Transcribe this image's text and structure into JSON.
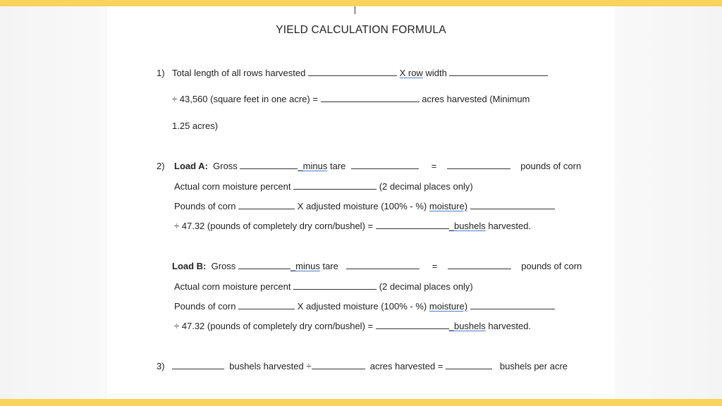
{
  "title": "YIELD CALCULATION FORMULA",
  "item1": {
    "num": "1)",
    "l1a": "Total length of all rows harvested",
    "l1b": "X",
    "l1c": "row",
    "l1d": "width",
    "l2a": "÷ 43,560 (square feet in one acre) =",
    "l2b": "acres harvested (Minimum",
    "l3": "1.25 acres)"
  },
  "item2": {
    "num": "2)",
    "loadA": {
      "label": "Load A:",
      "gross": "Gross",
      "minus": "minus",
      "tare": "tare",
      "eq": "=",
      "pounds": "pounds of corn",
      "moist1": "Actual corn moisture percent",
      "moist2": "(2 decimal places only)",
      "adj1": "Pounds of corn",
      "adj2": "X adjusted moisture (100% - %)",
      "adj3": "moisture)",
      "dry1": "÷ 47.32 (pounds of completely dry corn/bushel) =",
      "dry2": "bushels",
      "dry3": "harvested."
    },
    "loadB": {
      "label": "Load B:",
      "gross": "Gross",
      "minus": "minus",
      "tare": "tare",
      "eq": "=",
      "pounds": "pounds of corn",
      "moist1": "Actual corn moisture percent",
      "moist2": "(2 decimal places only)",
      "adj1": "Pounds of corn",
      "adj2": "X adjusted moisture (100% - %)",
      "adj3": "moisture)",
      "dry1": "÷ 47.32 (pounds of completely dry corn/bushel) =",
      "dry2": "bushels",
      "dry3": "harvested."
    }
  },
  "item3": {
    "num": "3)",
    "t1": "bushels harvested ÷",
    "t2": "acres harvested =",
    "t3": "bushels per acre"
  }
}
